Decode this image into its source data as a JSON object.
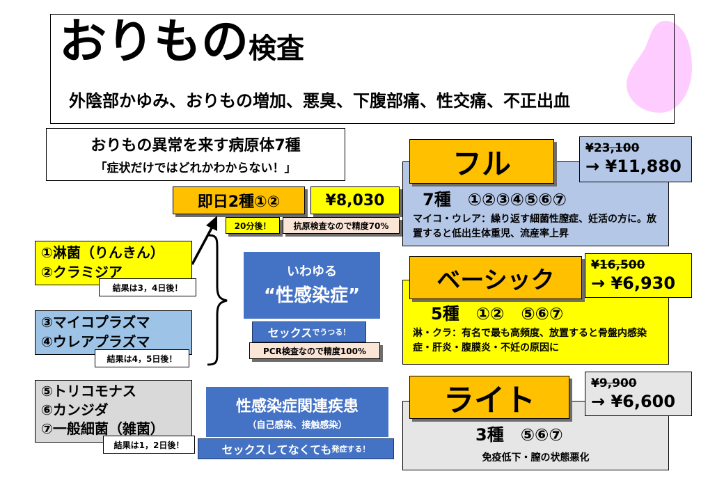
{
  "header": {
    "title_big": "おりもの",
    "title_small": "検査",
    "symptoms": "外陰部かゆみ、おりもの増加、悪臭、下腹部痛、性交痛、不正出血"
  },
  "pathogens_box": {
    "title": "おりもの異常を来す病原体7種",
    "subtitle": "「症状だけではどれかわからない！」"
  },
  "same_day": {
    "label": "即日2種①②",
    "price": "¥8,030",
    "note_time": "20分後！",
    "note_accuracy": "抗原検査なので精度70%"
  },
  "groups": [
    {
      "lines": [
        "①淋菌（りんきん）",
        "②クラミジア"
      ],
      "result": "結果は3，4日後！"
    },
    {
      "lines": [
        "③マイコプラズマ",
        "④ウレアプラズマ"
      ],
      "result": "結果は4，5日後！"
    },
    {
      "lines": [
        "⑤トリコモナス",
        "⑥カンジダ",
        "⑦一般細菌（雑菌）"
      ],
      "result": "結果は1，2日後！"
    }
  ],
  "std": {
    "line1": "いわゆる",
    "line2": "“性感染症”",
    "sex_main": "セックス",
    "sex_small": "でうつる！",
    "pcr": "PCR検査なので精度100%"
  },
  "related": {
    "title": "性感染症関連疾患",
    "sub": "（自己感染、接触感染）",
    "note_main": "セックスしてなくても",
    "note_small": "発症する！"
  },
  "plans": {
    "full": {
      "name": "フル",
      "old_price": "¥23,100",
      "new_price": "→ ¥11,880",
      "count": "7種　①②③④⑤⑥⑦",
      "desc": "マイコ・ウレア：繰り返す細菌性膣症、妊活の方に。放置すると低出生体重児、流産率上昇"
    },
    "basic": {
      "name": "ベーシック",
      "old_price": "¥16,500",
      "new_price": "→ ¥6,930",
      "count": "5種　①②　⑤⑥⑦",
      "desc": "淋・クラ：有名で最も高頻度、放置すると骨盤内感染症・肝炎・腹膜炎・不妊の原因に"
    },
    "light": {
      "name": "ライト",
      "old_price": "¥9,900",
      "new_price": "→ ¥6,600",
      "count": "3種　⑤⑥⑦",
      "desc": "免疫低下・膣の状態悪化"
    }
  },
  "colors": {
    "yellow": "#ffff00",
    "orange": "#ffc000",
    "blue": "#4472c4",
    "light_blue": "#9dc3e6",
    "periwinkle": "#b4c7e7",
    "gray": "#d9d9d9",
    "peach": "#fbe5d6",
    "pink": "#ffccff"
  }
}
